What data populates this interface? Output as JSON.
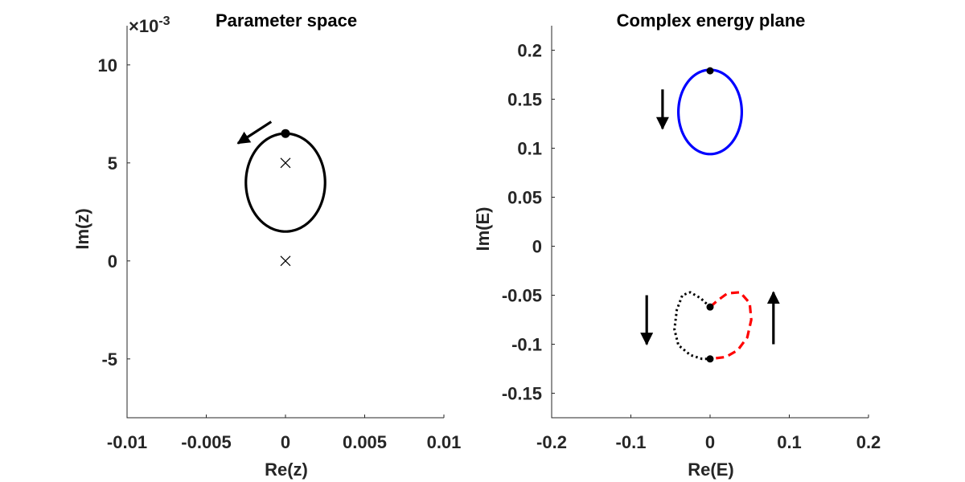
{
  "chart_data": [
    {
      "type": "line",
      "title": "Parameter space",
      "xlabel": "Re(z)",
      "ylabel": "Im(z)",
      "xlim": [
        -0.01,
        0.01
      ],
      "ylim": [
        -0.008,
        0.012
      ],
      "xticks": [
        -0.01,
        -0.005,
        0,
        0.005,
        0.01
      ],
      "xtick_labels": [
        "-0.01",
        "-0.005",
        "0",
        "0.005",
        "0.01"
      ],
      "yticks": [
        -0.005,
        0,
        0.005,
        0.01
      ],
      "ytick_labels": [
        "-5",
        "0",
        "5",
        "10"
      ],
      "exponent_label": "×10",
      "exponent_power": "-3",
      "series": [
        {
          "style": "solid",
          "color": "#000000",
          "shape": "ellipse",
          "center": [
            0,
            0.004
          ],
          "radius_x": 0.0025,
          "radius_y": 0.0025
        }
      ],
      "markers": [
        {
          "kind": "dot",
          "x": 0,
          "y": 0.0065
        },
        {
          "kind": "cross",
          "x": 0,
          "y": 0.005
        },
        {
          "kind": "cross",
          "x": 0,
          "y": 0
        }
      ],
      "arrows": [
        {
          "from": [
            -0.0009,
            0.0071
          ],
          "to": [
            -0.003,
            0.006
          ]
        }
      ]
    },
    {
      "type": "line",
      "title": "Complex energy plane",
      "xlabel": "Re(E)",
      "ylabel": "Im(E)",
      "xlim": [
        -0.2,
        0.2
      ],
      "ylim": [
        -0.175,
        0.225
      ],
      "xticks": [
        -0.2,
        -0.1,
        0,
        0.1,
        0.2
      ],
      "xtick_labels": [
        "-0.2",
        "-0.1",
        "0",
        "0.1",
        "0.2"
      ],
      "yticks": [
        -0.15,
        -0.1,
        -0.05,
        0,
        0.05,
        0.1,
        0.15,
        0.2
      ],
      "ytick_labels": [
        "-0.15",
        "-0.1",
        "-0.05",
        "0",
        "0.05",
        "0.1",
        "0.15",
        "0.2"
      ],
      "series": [
        {
          "style": "solid",
          "color": "#0000ff",
          "shape": "ellipse",
          "center": [
            0,
            0.137
          ],
          "radius_x": 0.04,
          "radius_y": 0.043
        },
        {
          "style": "dotted",
          "color": "#000000",
          "shape": "curve",
          "x": [
            0,
            -0.012,
            -0.025,
            -0.035,
            -0.042,
            -0.045,
            -0.04,
            -0.025,
            -0.01,
            0
          ],
          "y": [
            -0.062,
            -0.053,
            -0.047,
            -0.05,
            -0.065,
            -0.085,
            -0.101,
            -0.111,
            -0.115,
            -0.115
          ]
        },
        {
          "style": "dashed",
          "color": "#ff0000",
          "shape": "curve",
          "x": [
            0,
            0.01,
            0.022,
            0.038,
            0.05,
            0.052,
            0.047,
            0.035,
            0.02,
            0
          ],
          "y": [
            -0.062,
            -0.055,
            -0.048,
            -0.047,
            -0.058,
            -0.075,
            -0.093,
            -0.106,
            -0.113,
            -0.115
          ]
        }
      ],
      "markers": [
        {
          "kind": "dot",
          "x": 0,
          "y": 0.179
        },
        {
          "kind": "dot",
          "x": 0,
          "y": -0.062
        },
        {
          "kind": "dot",
          "x": 0,
          "y": -0.115
        }
      ],
      "arrows": [
        {
          "from": [
            -0.06,
            0.16
          ],
          "to": [
            -0.06,
            0.12
          ]
        },
        {
          "from": [
            -0.08,
            -0.05
          ],
          "to": [
            -0.08,
            -0.1
          ]
        },
        {
          "from": [
            0.08,
            -0.1
          ],
          "to": [
            0.08,
            -0.047
          ]
        }
      ]
    }
  ]
}
